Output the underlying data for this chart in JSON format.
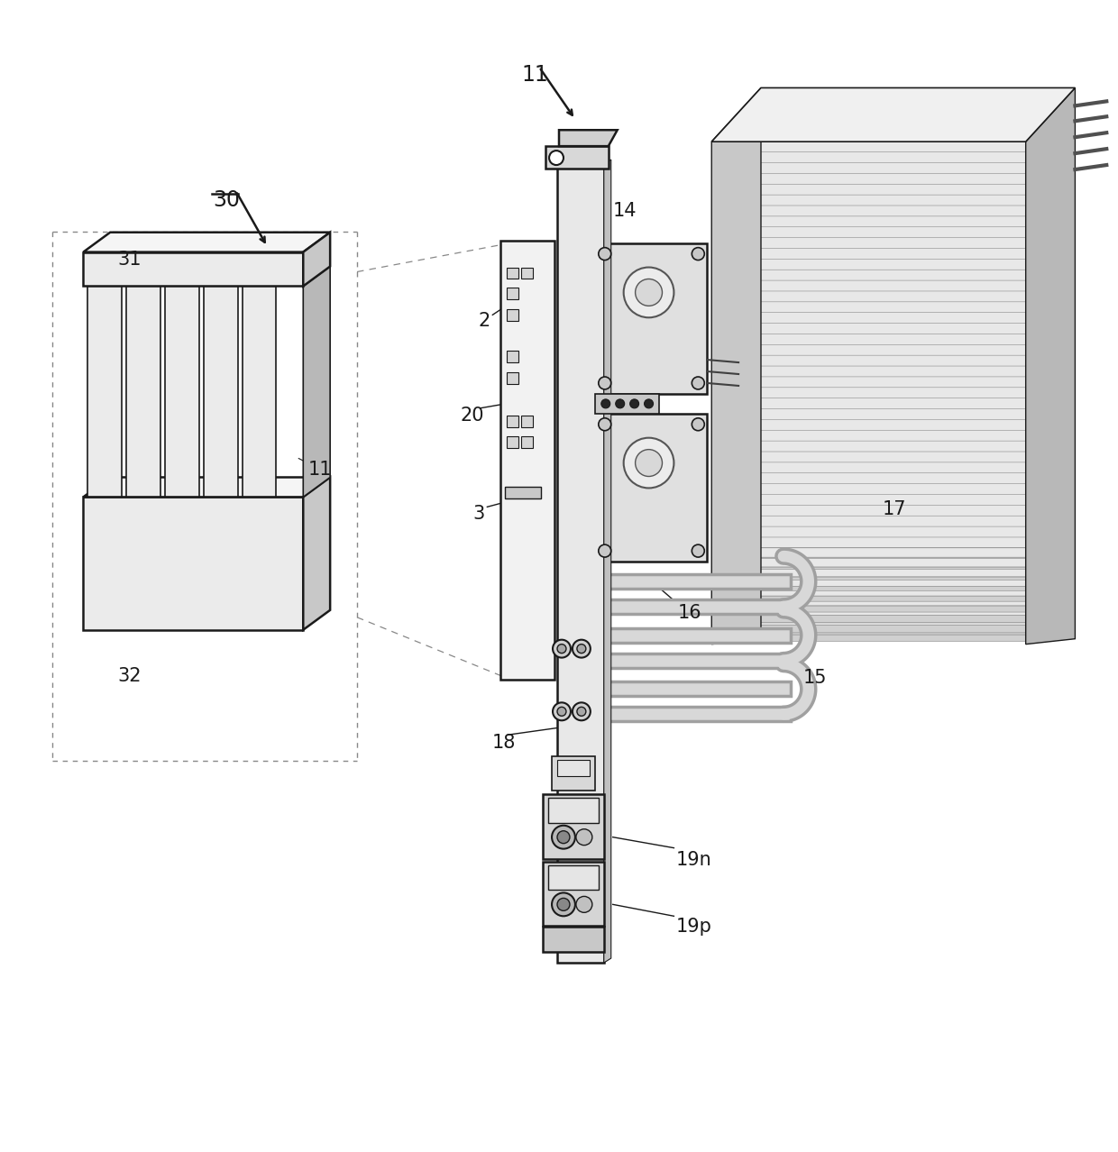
{
  "background_color": "#ffffff",
  "line_color": "#1a1a1a",
  "fig_width": 12.4,
  "fig_height": 12.78,
  "dpi": 100
}
